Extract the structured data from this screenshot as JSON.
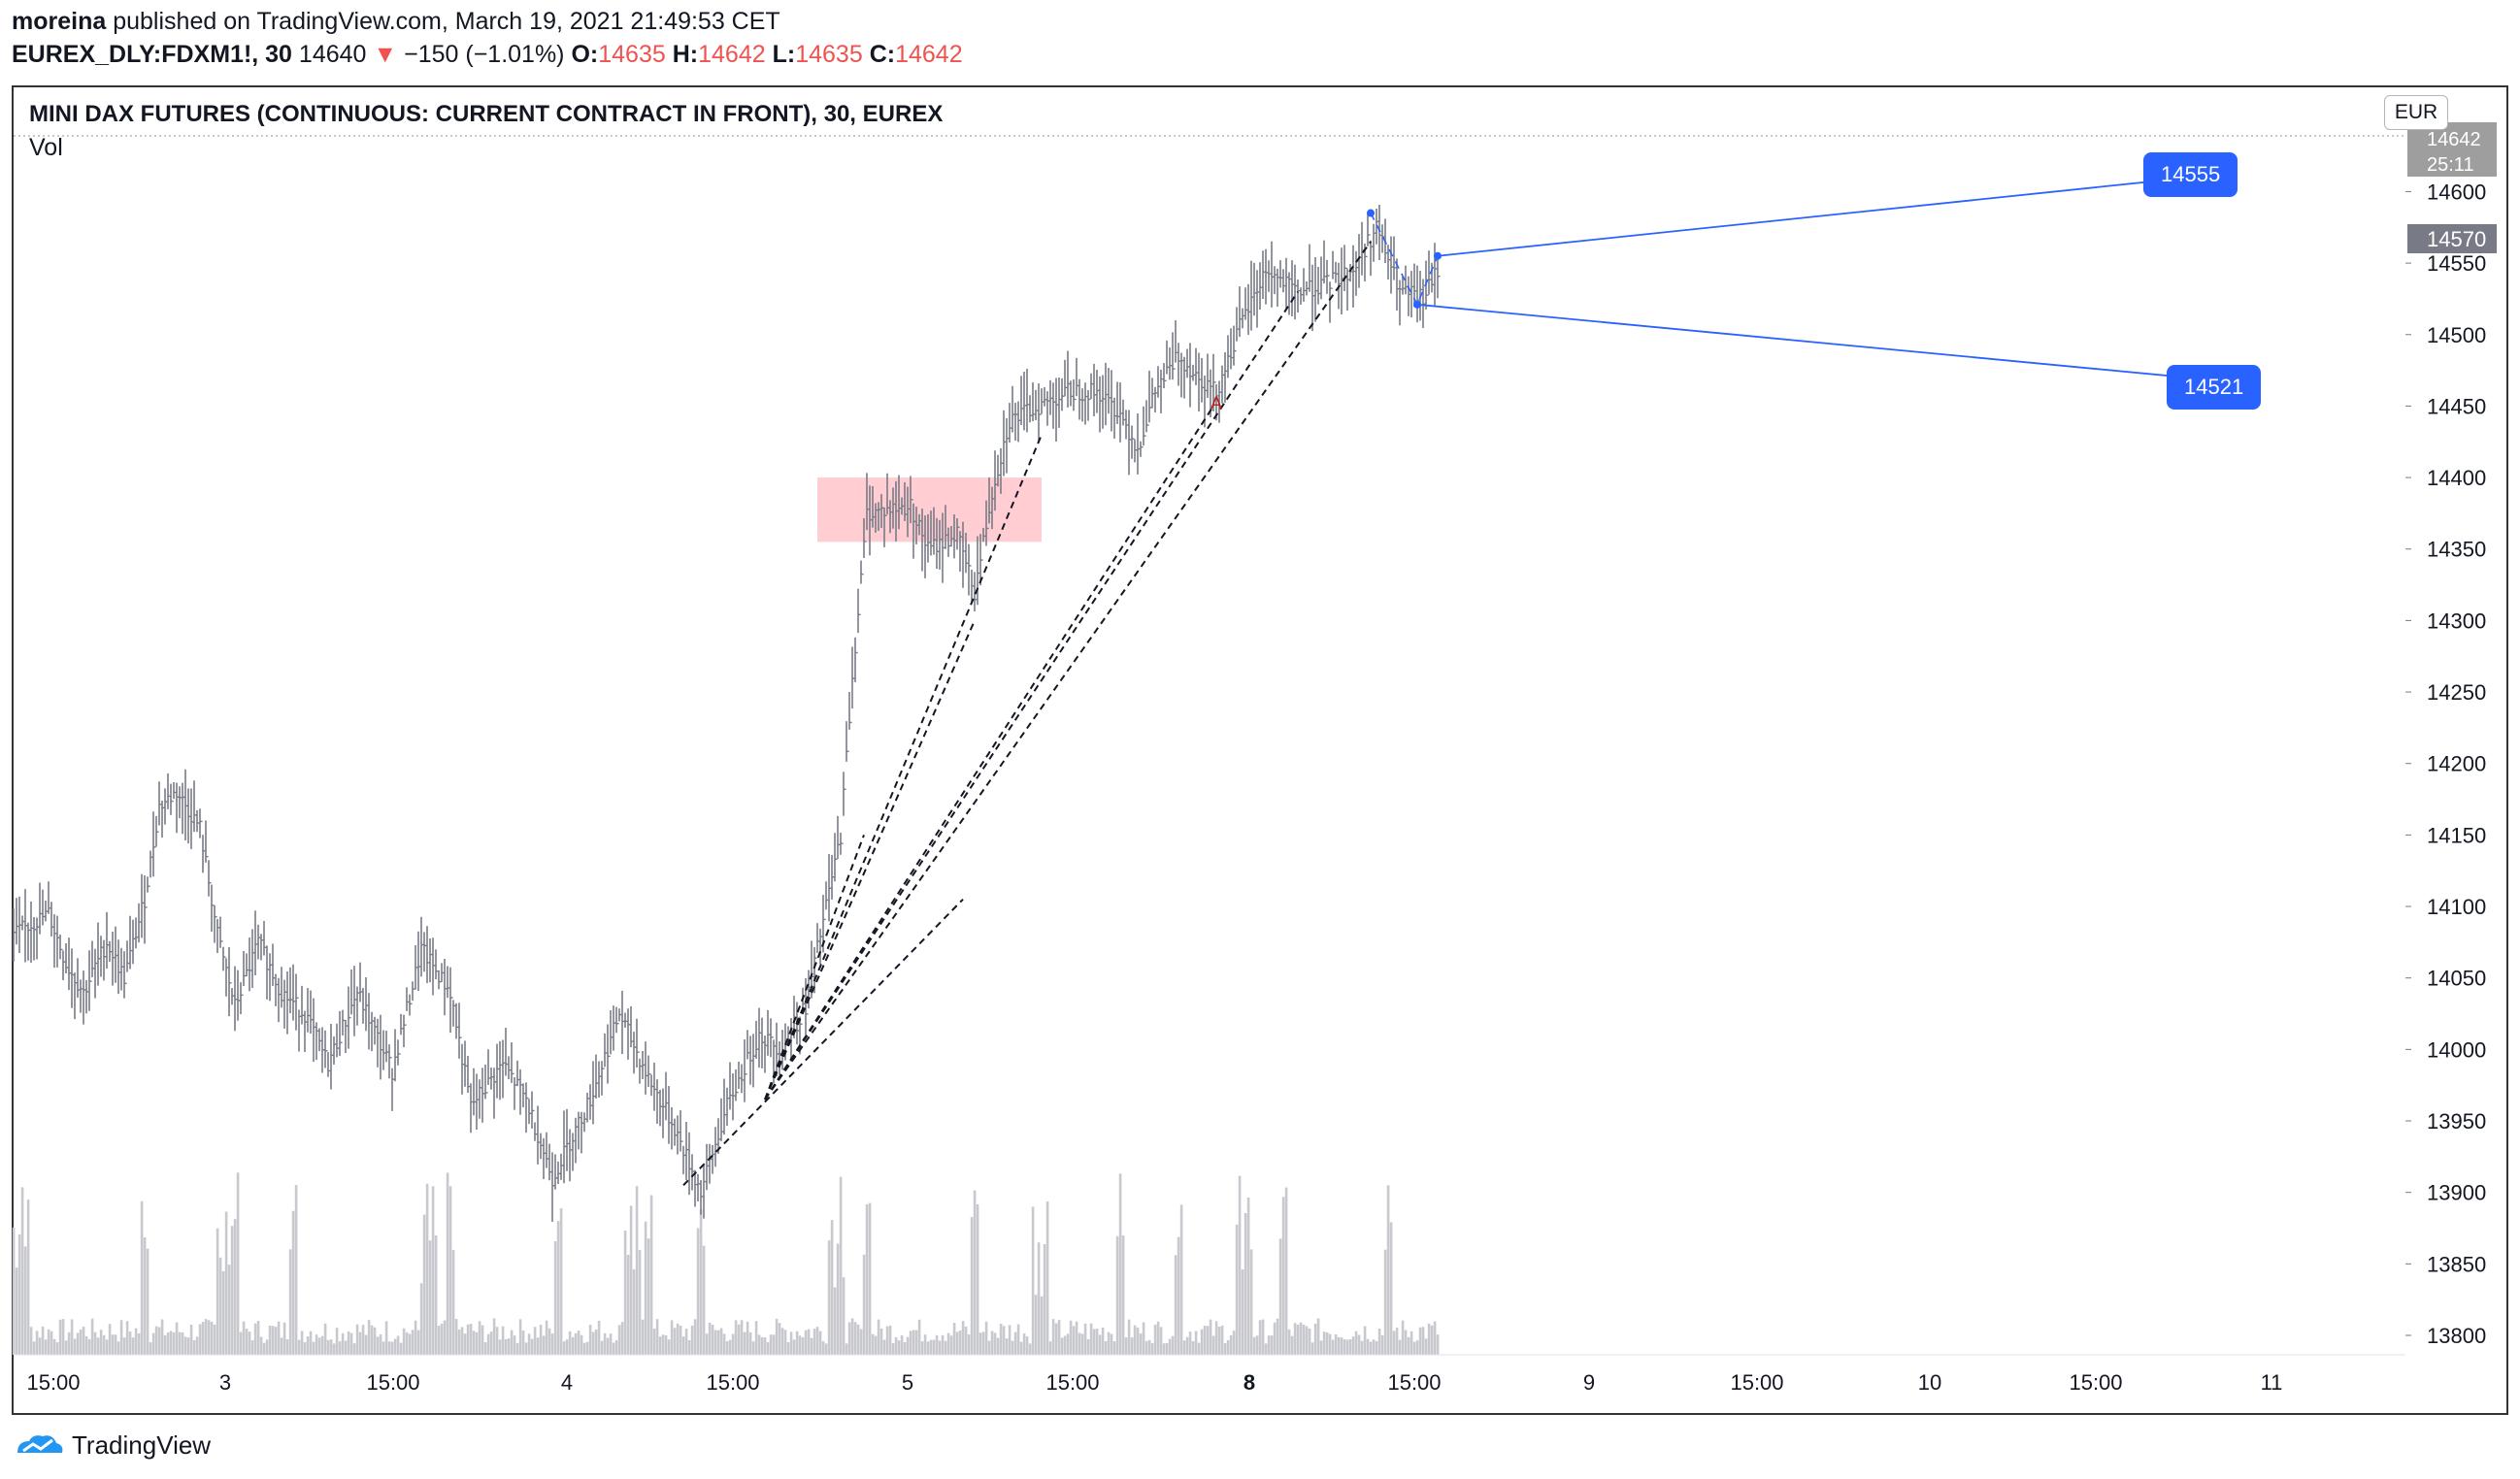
{
  "header": {
    "author": "moreina",
    "published_text": "published on TradingView.com, March 19, 2021 21:49:53 CET",
    "symbol": "EUREX_DLY:FDXM1!, 30",
    "last": "14640",
    "change_arrow": "▼",
    "change": "−150 (−1.01%)",
    "o_label": "O:",
    "o": "14635",
    "h_label": "H:",
    "h": "14642",
    "l_label": "L:",
    "l": "14635",
    "c_label": "C:",
    "c": "14642"
  },
  "chart_title": "MINI DAX FUTURES (CONTINUOUS: CURRENT CONTRACT IN FRONT), 30, EUREX",
  "volume_label": "Vol",
  "currency": "EUR",
  "price_tags": {
    "high": "14642",
    "countdown": "25:11",
    "current": "14570"
  },
  "callouts": {
    "upper": "14555",
    "lower": "14521"
  },
  "signal_marker": "A",
  "footer": {
    "brand": "TradingView"
  },
  "colors": {
    "bar": "#787b86",
    "volume": "#c8c9ce",
    "zone": "#ffcdd2",
    "callout": "#2962ff",
    "down": "#ef5350"
  },
  "chart_data": {
    "type": "bar",
    "ylim": [
      13790,
      14665
    ],
    "y_ticks": [
      13800,
      13850,
      13900,
      13950,
      14000,
      14050,
      14100,
      14150,
      14200,
      14250,
      14300,
      14350,
      14400,
      14450,
      14500,
      14550,
      14600
    ],
    "x_ticks": [
      "15:00",
      "3",
      "15:00",
      "4",
      "15:00",
      "5",
      "15:00",
      "8",
      "15:00",
      "9",
      "15:00",
      "10",
      "15:00",
      "11"
    ],
    "series_anchors": [
      [
        0,
        14080
      ],
      [
        12,
        14095
      ],
      [
        18,
        14060
      ],
      [
        24,
        14040
      ],
      [
        32,
        14075
      ],
      [
        38,
        14050
      ],
      [
        45,
        14105
      ],
      [
        50,
        14170
      ],
      [
        56,
        14180
      ],
      [
        64,
        14155
      ],
      [
        70,
        14080
      ],
      [
        76,
        14030
      ],
      [
        84,
        14075
      ],
      [
        92,
        14040
      ],
      [
        100,
        14025
      ],
      [
        108,
        13990
      ],
      [
        118,
        14040
      ],
      [
        130,
        13985
      ],
      [
        140,
        14070
      ],
      [
        150,
        14040
      ],
      [
        157,
        13960
      ],
      [
        168,
        13990
      ],
      [
        176,
        13965
      ],
      [
        185,
        13910
      ],
      [
        198,
        13965
      ],
      [
        208,
        14025
      ],
      [
        218,
        13980
      ],
      [
        227,
        13945
      ],
      [
        236,
        13900
      ],
      [
        245,
        13960
      ],
      [
        256,
        14010
      ],
      [
        264,
        14000
      ],
      [
        272,
        14030
      ],
      [
        280,
        14110
      ],
      [
        284,
        14150
      ],
      [
        288,
        14260
      ],
      [
        293,
        14375
      ],
      [
        308,
        14380
      ],
      [
        314,
        14350
      ],
      [
        324,
        14360
      ],
      [
        330,
        14320
      ],
      [
        336,
        14390
      ],
      [
        342,
        14440
      ],
      [
        352,
        14450
      ],
      [
        362,
        14460
      ],
      [
        372,
        14460
      ],
      [
        380,
        14445
      ],
      [
        386,
        14420
      ],
      [
        392,
        14460
      ],
      [
        400,
        14485
      ],
      [
        407,
        14470
      ],
      [
        413,
        14460
      ],
      [
        421,
        14505
      ],
      [
        430,
        14545
      ],
      [
        440,
        14530
      ],
      [
        450,
        14535
      ],
      [
        460,
        14545
      ],
      [
        468,
        14575
      ],
      [
        476,
        14530
      ],
      [
        484,
        14525
      ],
      [
        489,
        14545
      ]
    ],
    "zone": {
      "x_start": 276,
      "x_end": 353,
      "top": 14400,
      "bottom": 14355
    },
    "trend_lines": [
      {
        "from": [
          230,
          13905
        ],
        "to": [
          326,
          14105
        ]
      },
      {
        "from": [
          258,
          13965
        ],
        "to": [
          292,
          14150
        ]
      },
      {
        "from": [
          258,
          13965
        ],
        "to": [
          330,
          14300
        ]
      },
      {
        "from": [
          258,
          13965
        ],
        "to": [
          353,
          14430
        ]
      },
      {
        "from": [
          258,
          13965
        ],
        "to": [
          412,
          14450
        ]
      },
      {
        "from": [
          258,
          13965
        ],
        "to": [
          441,
          14530
        ]
      },
      {
        "from": [
          258,
          13965
        ],
        "to": [
          466,
          14565
        ]
      }
    ],
    "marker_point": [
      413,
      14448
    ],
    "blue_points": [
      [
        466,
        14585
      ],
      [
        482,
        14521
      ],
      [
        489,
        14555
      ]
    ]
  }
}
